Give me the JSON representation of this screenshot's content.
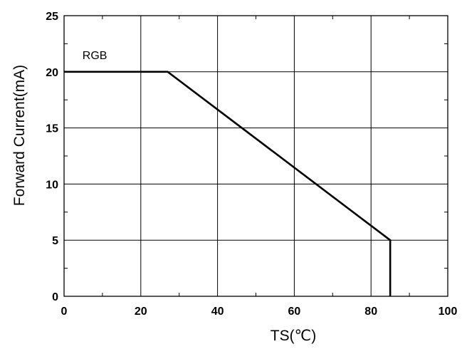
{
  "chart_data": {
    "type": "line",
    "xlabel": "TS(℃)",
    "ylabel": "Forward Current(mA)",
    "xlim": [
      0,
      100
    ],
    "ylim": [
      0,
      25
    ],
    "xticks": [
      0,
      20,
      40,
      60,
      80,
      100
    ],
    "yticks": [
      0,
      5,
      10,
      15,
      20,
      25
    ],
    "grid": true,
    "series": [
      {
        "name": "RGB",
        "x": [
          0,
          27,
          85,
          85
        ],
        "y": [
          20,
          20,
          5,
          0
        ]
      }
    ],
    "annotations": [
      {
        "text": "RGB",
        "x": 8,
        "y": 21.5
      }
    ]
  }
}
